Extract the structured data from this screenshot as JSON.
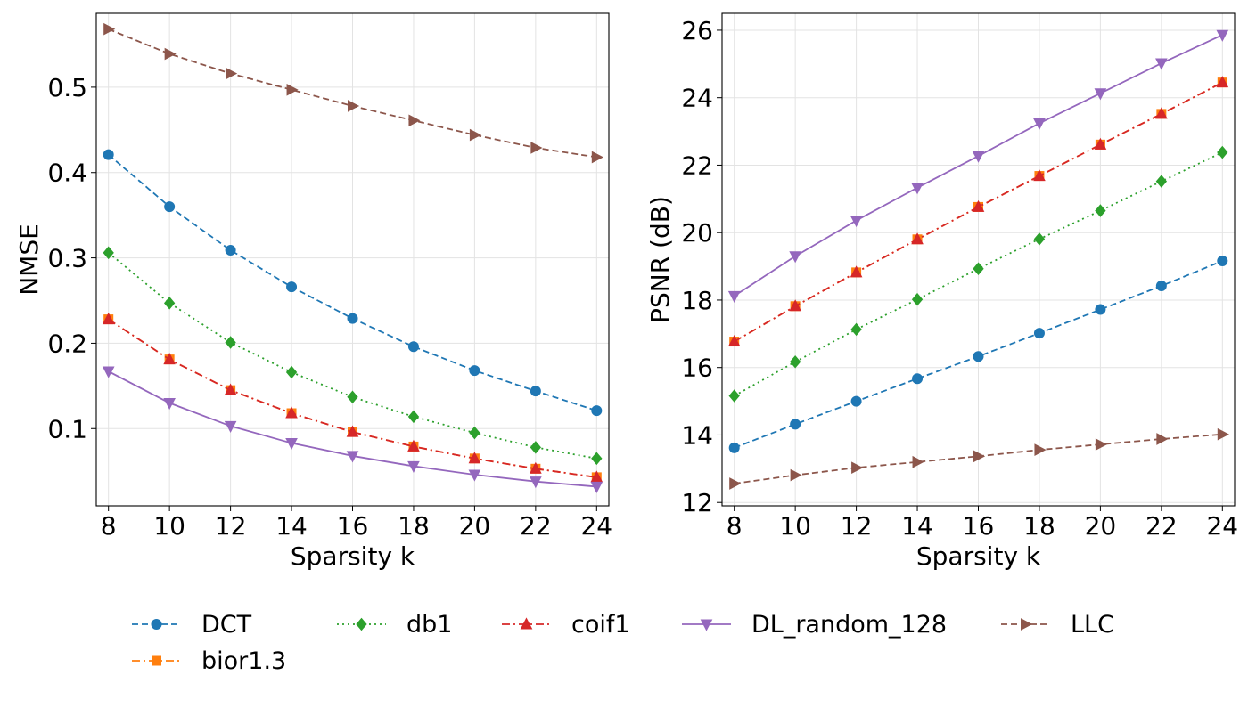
{
  "chart_data": [
    {
      "type": "line",
      "title": "",
      "xlabel": "Sparsity k",
      "ylabel": "NMSE",
      "x": [
        8,
        10,
        12,
        14,
        16,
        18,
        20,
        22,
        24
      ],
      "xticks": [
        "8",
        "10",
        "12",
        "14",
        "16",
        "18",
        "20",
        "22",
        "24"
      ],
      "xlim": [
        7.6,
        24.4
      ],
      "yticks": [
        "0.1",
        "0.2",
        "0.3",
        "0.4",
        "0.5"
      ],
      "ytick_values": [
        0.1,
        0.2,
        0.3,
        0.4,
        0.5
      ],
      "ylim": [
        0.0095,
        0.5865
      ],
      "grid": true,
      "series": [
        {
          "name": "DCT",
          "values": [
            0.421,
            0.36,
            0.309,
            0.266,
            0.229,
            0.196,
            0.168,
            0.144,
            0.121
          ]
        },
        {
          "name": "bior1.3",
          "values": [
            0.228,
            0.181,
            0.145,
            0.118,
            0.096,
            0.079,
            0.065,
            0.053,
            0.043
          ]
        },
        {
          "name": "db1",
          "values": [
            0.306,
            0.247,
            0.201,
            0.166,
            0.137,
            0.114,
            0.095,
            0.078,
            0.065
          ]
        },
        {
          "name": "coif1",
          "values": [
            0.228,
            0.181,
            0.145,
            0.118,
            0.096,
            0.079,
            0.065,
            0.053,
            0.043
          ]
        },
        {
          "name": "DL_random_128",
          "values": [
            0.167,
            0.13,
            0.103,
            0.083,
            0.068,
            0.056,
            0.046,
            0.038,
            0.032
          ]
        },
        {
          "name": "LLC",
          "values": [
            0.568,
            0.539,
            0.516,
            0.497,
            0.478,
            0.461,
            0.444,
            0.429,
            0.418
          ]
        }
      ]
    },
    {
      "type": "line",
      "title": "",
      "xlabel": "Sparsity k",
      "ylabel": "PSNR (dB)",
      "x": [
        8,
        10,
        12,
        14,
        16,
        18,
        20,
        22,
        24
      ],
      "xticks": [
        "8",
        "10",
        "12",
        "14",
        "16",
        "18",
        "20",
        "22",
        "24"
      ],
      "xlim": [
        7.6,
        24.4
      ],
      "yticks": [
        "12",
        "14",
        "16",
        "18",
        "20",
        "22",
        "24",
        "26"
      ],
      "ytick_values": [
        12,
        14,
        16,
        18,
        20,
        22,
        24,
        26
      ],
      "ylim": [
        11.9,
        26.5
      ],
      "grid": true,
      "series": [
        {
          "name": "DCT",
          "values": [
            13.62,
            14.32,
            15.0,
            15.67,
            16.33,
            17.02,
            17.72,
            18.42,
            19.16
          ]
        },
        {
          "name": "bior1.3",
          "values": [
            16.77,
            17.82,
            18.82,
            19.8,
            20.76,
            21.68,
            22.61,
            23.52,
            24.45
          ]
        },
        {
          "name": "db1",
          "values": [
            15.16,
            16.17,
            17.13,
            18.02,
            18.93,
            19.81,
            20.65,
            21.52,
            22.38
          ]
        },
        {
          "name": "coif1",
          "values": [
            16.77,
            17.82,
            18.82,
            19.8,
            20.76,
            21.68,
            22.61,
            23.52,
            24.45
          ]
        },
        {
          "name": "DL_random_128",
          "values": [
            18.12,
            19.3,
            20.36,
            21.33,
            22.27,
            23.24,
            24.13,
            25.02,
            25.86
          ]
        },
        {
          "name": "LLC",
          "values": [
            12.56,
            12.81,
            13.03,
            13.2,
            13.37,
            13.56,
            13.72,
            13.88,
            14.02
          ]
        }
      ]
    }
  ],
  "legend": {
    "placement": "bottom",
    "entries": [
      {
        "name": "DCT",
        "color": "#1f77b4",
        "linestyle": "dashed",
        "marker": "circle"
      },
      {
        "name": "db1",
        "color": "#2ca02c",
        "linestyle": "dotted",
        "marker": "diamond"
      },
      {
        "name": "coif1",
        "color": "#d62728",
        "linestyle": "dashdot",
        "marker": "triangle-up"
      },
      {
        "name": "DL_random_128",
        "color": "#9467bd",
        "linestyle": "solid",
        "marker": "triangle-down"
      },
      {
        "name": "LLC",
        "color": "#8c564b",
        "linestyle": "dashed",
        "marker": "triangle-right"
      },
      {
        "name": "bior1.3",
        "color": "#ff7f0e",
        "linestyle": "dashdot",
        "marker": "square"
      }
    ]
  },
  "styles": {
    "DCT": {
      "color": "#1f77b4",
      "dash": "dashed",
      "marker": "circle"
    },
    "bior1.3": {
      "color": "#ff7f0e",
      "dash": "dashdot",
      "marker": "square"
    },
    "db1": {
      "color": "#2ca02c",
      "dash": "dotted",
      "marker": "diamond"
    },
    "coif1": {
      "color": "#d62728",
      "dash": "dashdot",
      "marker": "triangle-up"
    },
    "DL_random_128": {
      "color": "#9467bd",
      "dash": "solid",
      "marker": "triangle-down"
    },
    "LLC": {
      "color": "#8c564b",
      "dash": "dashed",
      "marker": "triangle-right"
    }
  }
}
